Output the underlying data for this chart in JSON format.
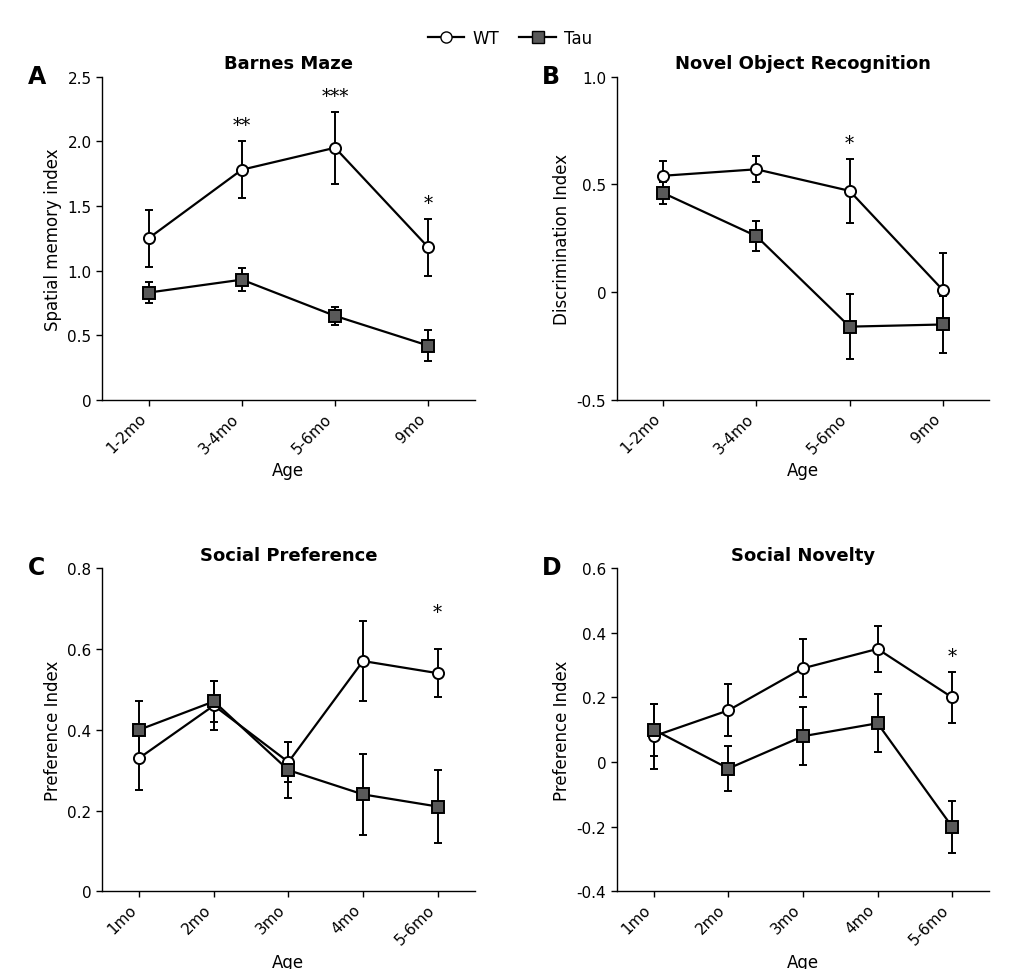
{
  "panel_A": {
    "title": "Barnes Maze",
    "xlabel": "Age",
    "ylabel": "Spatial memory index",
    "x_labels": [
      "1-2mo",
      "3-4mo",
      "5-6mo",
      "9mo"
    ],
    "wt_mean": [
      1.25,
      1.78,
      1.95,
      1.18
    ],
    "wt_err": [
      0.22,
      0.22,
      0.28,
      0.22
    ],
    "tau_mean": [
      0.83,
      0.93,
      0.65,
      0.42
    ],
    "tau_err": [
      0.08,
      0.09,
      0.07,
      0.12
    ],
    "ylim": [
      0,
      2.5
    ],
    "yticks": [
      0.0,
      0.5,
      1.0,
      1.5,
      2.0,
      2.5
    ],
    "ytick_labels": [
      "0",
      "0.5",
      "1.0",
      "1.5",
      "2.0",
      "2.5"
    ],
    "sig_labels": [
      null,
      "**",
      "***",
      "*"
    ],
    "sig_y": [
      null,
      2.06,
      2.28,
      1.45
    ]
  },
  "panel_B": {
    "title": "Novel Object Recognition",
    "xlabel": "Age",
    "ylabel": "Discrimination Index",
    "x_labels": [
      "1-2mo",
      "3-4mo",
      "5-6mo",
      "9mo"
    ],
    "wt_mean": [
      0.54,
      0.57,
      0.47,
      0.01
    ],
    "wt_err": [
      0.07,
      0.06,
      0.15,
      0.17
    ],
    "tau_mean": [
      0.46,
      0.26,
      -0.16,
      -0.15
    ],
    "tau_err": [
      0.05,
      0.07,
      0.15,
      0.13
    ],
    "ylim": [
      -0.5,
      1.0
    ],
    "yticks": [
      -0.5,
      0.0,
      0.5,
      1.0
    ],
    "ytick_labels": [
      "-0.5",
      "0",
      "0.5",
      "1.0"
    ],
    "sig_labels": [
      null,
      null,
      "*",
      null
    ],
    "sig_y": [
      null,
      null,
      0.65,
      null
    ]
  },
  "panel_C": {
    "title": "Social Preference",
    "xlabel": "Age",
    "ylabel": "Preference Index",
    "x_labels": [
      "1mo",
      "2mo",
      "3mo",
      "4mo",
      "5-6mo"
    ],
    "wt_mean": [
      0.33,
      0.46,
      0.32,
      0.57,
      0.54
    ],
    "wt_err": [
      0.08,
      0.06,
      0.05,
      0.1,
      0.06
    ],
    "tau_mean": [
      0.4,
      0.47,
      0.3,
      0.24,
      0.21
    ],
    "tau_err": [
      0.07,
      0.05,
      0.07,
      0.1,
      0.09
    ],
    "ylim": [
      0,
      0.8
    ],
    "yticks": [
      0.0,
      0.2,
      0.4,
      0.6,
      0.8
    ],
    "ytick_labels": [
      "0",
      "0.2",
      "0.4",
      "0.6",
      "0.8"
    ],
    "sig_labels": [
      null,
      null,
      null,
      null,
      "*"
    ],
    "sig_y": [
      null,
      null,
      null,
      null,
      0.67
    ]
  },
  "panel_D": {
    "title": "Social Novelty",
    "xlabel": "Age",
    "ylabel": "Preference Index",
    "x_labels": [
      "1mo",
      "2mo",
      "3mo",
      "4mo",
      "5-6mo"
    ],
    "wt_mean": [
      0.08,
      0.16,
      0.29,
      0.35,
      0.2
    ],
    "wt_err": [
      0.1,
      0.08,
      0.09,
      0.07,
      0.08
    ],
    "tau_mean": [
      0.1,
      -0.02,
      0.08,
      0.12,
      -0.2
    ],
    "tau_err": [
      0.08,
      0.07,
      0.09,
      0.09,
      0.08
    ],
    "ylim": [
      -0.4,
      0.6
    ],
    "yticks": [
      -0.4,
      -0.2,
      0.0,
      0.2,
      0.4,
      0.6
    ],
    "ytick_labels": [
      "-0.4",
      "-0.2",
      "0",
      "0.2",
      "0.4",
      "0.6"
    ],
    "sig_labels": [
      null,
      null,
      null,
      null,
      "*"
    ],
    "sig_y": [
      null,
      null,
      null,
      null,
      0.3
    ]
  },
  "wt_color": "#ffffff",
  "tau_color": "#595959",
  "line_color": "#000000",
  "marker_size": 8,
  "linewidth": 1.6,
  "capsize": 3,
  "elinewidth": 1.4,
  "panel_labels": [
    "A",
    "B",
    "C",
    "D"
  ],
  "title_fontsize": 13,
  "label_fontsize": 12,
  "tick_fontsize": 11,
  "panel_label_fontsize": 17,
  "sig_fontsize": 13,
  "legend_fontsize": 12
}
